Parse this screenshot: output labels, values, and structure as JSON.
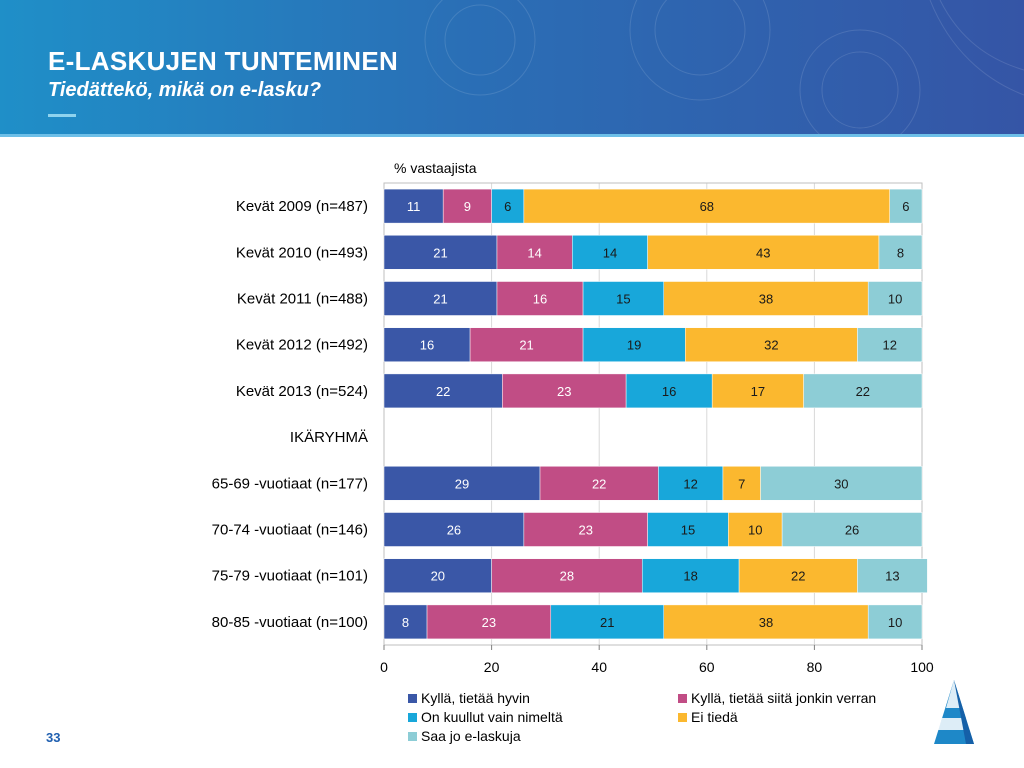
{
  "header": {
    "title": "E-LASKUJEN TUNTEMINEN",
    "subtitle": "Tiedättekö, mikä on e-lasku?"
  },
  "page_number": "33",
  "logo": {
    "icon": "pyramid-logo-icon"
  },
  "colors": {
    "header_start": "#1f8fc8",
    "header_end": "#3555a6"
  },
  "chart_data": {
    "type": "bar",
    "orientation": "horizontal",
    "stacked": true,
    "unit_label": "% vastaajista",
    "categories": [
      "Kevät 2009 (n=487)",
      "Kevät 2010 (n=493)",
      "Kevät 2011 (n=488)",
      "Kevät 2012 (n=492)",
      "Kevät 2013 (n=524)",
      "IKÄRYHMÄ",
      "65-69 -vuotiaat (n=177)",
      "70-74 -vuotiaat (n=146)",
      "75-79 -vuotiaat (n=101)",
      "80-85 -vuotiaat (n=100)"
    ],
    "series": [
      {
        "name": "Kyllä, tietää hyvin",
        "color": "#3a57a7",
        "label_color": "#ffffff",
        "values": [
          11,
          21,
          21,
          16,
          22,
          null,
          29,
          26,
          20,
          8
        ]
      },
      {
        "name": "Kyllä, tietää siitä jonkin verran",
        "color": "#c14d85",
        "label_color": "#ffffff",
        "values": [
          9,
          14,
          16,
          21,
          23,
          null,
          22,
          23,
          28,
          23
        ]
      },
      {
        "name": "On kuullut vain nimeltä",
        "color": "#18a7da",
        "label_color": "#1a1a1a",
        "values": [
          6,
          14,
          15,
          19,
          16,
          null,
          12,
          15,
          18,
          21
        ]
      },
      {
        "name": "Ei tiedä",
        "color": "#fbb82f",
        "label_color": "#1a1a1a",
        "values": [
          68,
          43,
          38,
          32,
          17,
          null,
          7,
          10,
          22,
          38
        ]
      },
      {
        "name": "Saa jo e-laskuja",
        "color": "#8dcdd6",
        "label_color": "#1a1a1a",
        "values": [
          6,
          8,
          10,
          12,
          22,
          null,
          30,
          26,
          13,
          10
        ]
      }
    ],
    "xlim": [
      0,
      100
    ],
    "xticks": [
      0,
      20,
      40,
      60,
      80,
      100
    ],
    "grid": true,
    "legend_position": "bottom"
  }
}
